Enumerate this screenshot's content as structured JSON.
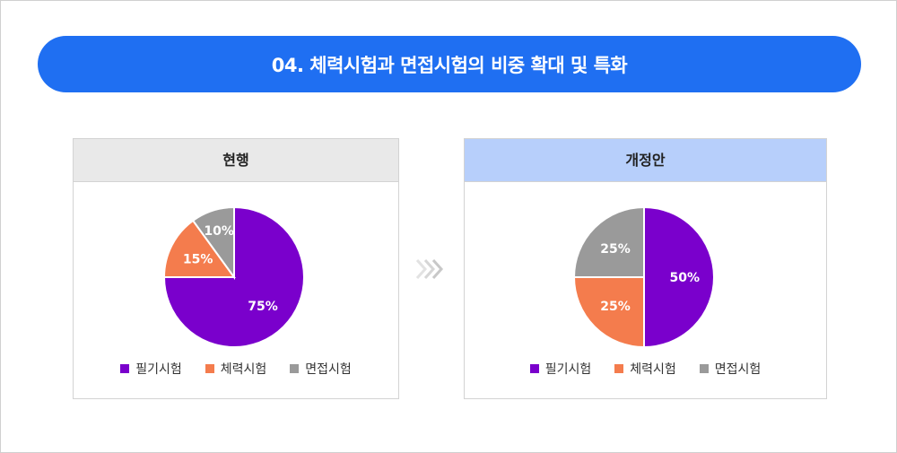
{
  "title": "04. 체력시험과 면접시험의 비중 확대 및 특화",
  "colors": {
    "written": "#7a00cc",
    "physical": "#f47c4d",
    "interview": "#9a9a9a",
    "banner": "#1f6ff2"
  },
  "chart_data": [
    {
      "type": "pie",
      "title": "현행",
      "categories": [
        "필기시험",
        "체력시험",
        "면접시험"
      ],
      "values": [
        75,
        15,
        10
      ],
      "labels": [
        "75%",
        "15%",
        "10%"
      ]
    },
    {
      "type": "pie",
      "title": "개정안",
      "categories": [
        "필기시험",
        "체력시험",
        "면접시험"
      ],
      "values": [
        50,
        25,
        25
      ],
      "labels": [
        "50%",
        "25%",
        "25%"
      ]
    }
  ]
}
